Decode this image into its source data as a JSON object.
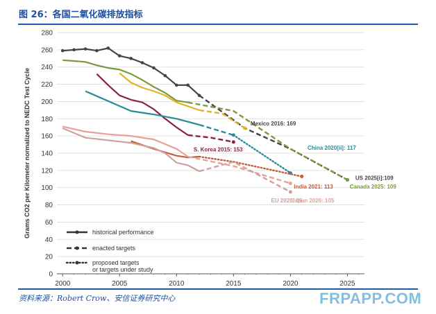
{
  "header": {
    "title": "图 26：各国二氧化碳排放指标"
  },
  "footer": {
    "source": "资料来源：Robert Crow、安信证券研究中心",
    "watermark": "FRPAPP.COM"
  },
  "colors": {
    "us": "#444444",
    "canada": "#7a9a3a",
    "japan": "#e8a09a",
    "eu": "#cfa09c",
    "china": "#2a8a9a",
    "india": "#c75a3a",
    "korea": "#8a1f4c",
    "mexico": "#e0b32a",
    "blue_text": "#1f4e9c"
  },
  "chart_data": {
    "type": "line",
    "title": "",
    "xlabel": "",
    "ylabel": "Grams CO2 per Kilometer normalized to NEDC Test Cycle",
    "xlim": [
      1999.5,
      2026.5
    ],
    "ylim": [
      0,
      280
    ],
    "x_ticks": [
      2000,
      2005,
      2010,
      2015,
      2020,
      2025
    ],
    "y_ticks": [
      0,
      20,
      40,
      60,
      80,
      100,
      120,
      140,
      160,
      180,
      200,
      220,
      240,
      260,
      280
    ],
    "legend": {
      "historical": "historical performance",
      "enacted": "enacted targets",
      "proposed_line1": "proposed targets",
      "proposed_line2": "or targets under study"
    },
    "annotations": {
      "mexico": "Mexico 2016: 169",
      "china": "China 2020[ii]: 117",
      "korea": "S. Korea 2015: 153",
      "india": "India 2021: 113",
      "japan": "Japan 2020: 105",
      "eu": "EU 2020: 95",
      "us": "US 2025[i]:109",
      "canada": "Canada 2025: 109"
    },
    "series": [
      {
        "name": "US",
        "color_key": "us",
        "historical": [
          [
            2000,
            259
          ],
          [
            2001,
            260
          ],
          [
            2002,
            261
          ],
          [
            2003,
            259
          ],
          [
            2004,
            262
          ],
          [
            2005,
            253
          ],
          [
            2006,
            250
          ],
          [
            2007,
            245
          ],
          [
            2008,
            239
          ],
          [
            2009,
            230
          ],
          [
            2010,
            219
          ],
          [
            2011,
            219
          ],
          [
            2012,
            207
          ]
        ],
        "enacted": [
          [
            2012,
            207
          ],
          [
            2016,
            169
          ],
          [
            2020,
            145
          ],
          [
            2025,
            109
          ]
        ],
        "proposed": []
      },
      {
        "name": "Canada",
        "color_key": "canada",
        "historical": [
          [
            2000,
            248
          ],
          [
            2001,
            247
          ],
          [
            2002,
            246
          ],
          [
            2003,
            242
          ],
          [
            2004,
            239
          ],
          [
            2005,
            237
          ],
          [
            2006,
            232
          ],
          [
            2007,
            225
          ],
          [
            2008,
            217
          ],
          [
            2009,
            210
          ],
          [
            2010,
            201
          ],
          [
            2011,
            199
          ]
        ],
        "enacted": [
          [
            2011,
            199
          ],
          [
            2015,
            189
          ],
          [
            2020,
            145
          ],
          [
            2025,
            109
          ]
        ],
        "proposed": []
      },
      {
        "name": "Mexico",
        "color_key": "mexico",
        "historical": [
          [
            2005,
            233
          ],
          [
            2006,
            222
          ],
          [
            2007,
            216
          ],
          [
            2008,
            212
          ],
          [
            2009,
            207
          ],
          [
            2010,
            199
          ],
          [
            2012,
            190
          ]
        ],
        "enacted": [
          [
            2012,
            190
          ],
          [
            2014,
            186
          ],
          [
            2016,
            169
          ]
        ],
        "proposed": []
      },
      {
        "name": "S. Korea",
        "color_key": "korea",
        "historical": [
          [
            2003,
            232
          ],
          [
            2004,
            219
          ],
          [
            2005,
            207
          ],
          [
            2006,
            202
          ],
          [
            2007,
            199
          ],
          [
            2008,
            191
          ],
          [
            2009,
            180
          ],
          [
            2010,
            170
          ],
          [
            2011,
            161
          ]
        ],
        "enacted": [
          [
            2011,
            161
          ],
          [
            2013,
            158
          ],
          [
            2015,
            153
          ]
        ],
        "proposed": []
      },
      {
        "name": "China",
        "color_key": "china",
        "historical": [
          [
            2002,
            212
          ],
          [
            2006,
            189
          ],
          [
            2008,
            185
          ],
          [
            2010,
            180
          ],
          [
            2012,
            173
          ]
        ],
        "enacted": [
          [
            2012,
            173
          ],
          [
            2015,
            161
          ]
        ],
        "proposed": [
          [
            2015,
            161
          ],
          [
            2020,
            117
          ]
        ]
      },
      {
        "name": "India",
        "color_key": "india",
        "historical": [
          [
            2006,
            154
          ],
          [
            2008,
            145
          ],
          [
            2010,
            137
          ],
          [
            2011,
            135
          ],
          [
            2012,
            136
          ]
        ],
        "enacted": [],
        "proposed": [
          [
            2012,
            136
          ],
          [
            2015,
            130
          ],
          [
            2021,
            113
          ]
        ]
      },
      {
        "name": "Japan",
        "color_key": "japan",
        "historical": [
          [
            2000,
            171
          ],
          [
            2002,
            165
          ],
          [
            2004,
            162
          ],
          [
            2006,
            160
          ],
          [
            2008,
            156
          ],
          [
            2010,
            145
          ],
          [
            2011,
            136
          ]
        ],
        "enacted": [
          [
            2011,
            136
          ],
          [
            2015,
            125
          ],
          [
            2020,
            105
          ]
        ],
        "proposed": []
      },
      {
        "name": "EU",
        "color_key": "eu",
        "historical": [
          [
            2000,
            169
          ],
          [
            2002,
            158
          ],
          [
            2004,
            155
          ],
          [
            2006,
            152
          ],
          [
            2008,
            146
          ],
          [
            2009,
            140
          ],
          [
            2010,
            129
          ],
          [
            2011,
            126
          ],
          [
            2012,
            119
          ]
        ],
        "enacted": [
          [
            2012,
            119
          ],
          [
            2015,
            130
          ],
          [
            2020,
            95
          ]
        ],
        "proposed": []
      }
    ]
  }
}
